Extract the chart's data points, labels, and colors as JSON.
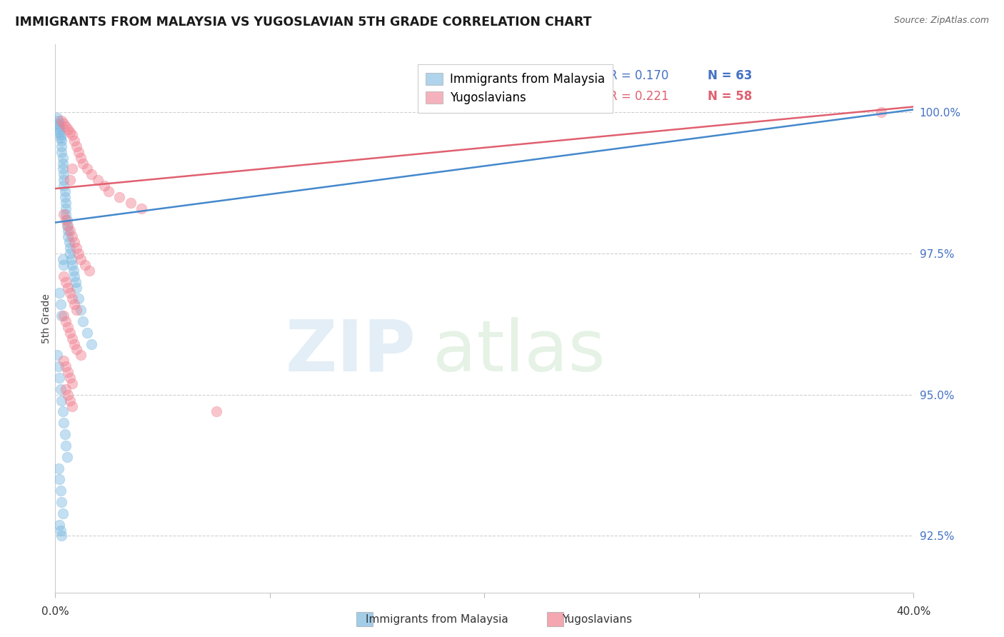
{
  "title": "IMMIGRANTS FROM MALAYSIA VS YUGOSLAVIAN 5TH GRADE CORRELATION CHART",
  "source": "Source: ZipAtlas.com",
  "ylabel": "5th Grade",
  "y_ticks": [
    92.5,
    95.0,
    97.5,
    100.0
  ],
  "y_tick_labels": [
    "92.5%",
    "95.0%",
    "97.5%",
    "100.0%"
  ],
  "x_range": [
    0.0,
    40.0
  ],
  "y_range": [
    91.5,
    101.2
  ],
  "malaysia_color": "#7ab8e0",
  "yugoslavian_color": "#f08090",
  "malaysia_line_color": "#4488cc",
  "yugoslavian_line_color": "#e06070",
  "background_color": "#ffffff",
  "grid_color": "#d0d0d0",
  "tick_label_color": "#4472c4",
  "title_color": "#1a1a1a",
  "source_color": "#666666",
  "ylabel_color": "#444444",
  "legend_r1": "R = 0.170",
  "legend_n1": "N = 63",
  "legend_r2": "R = 0.221",
  "legend_n2": "N = 58",
  "legend_label1": "Immigrants from Malaysia",
  "legend_label2": "Yugoslavians",
  "malaysia_line_x0": 0.0,
  "malaysia_line_y0": 98.05,
  "malaysia_line_x1": 40.0,
  "malaysia_line_y1": 100.05,
  "yugoslav_line_x0": 0.0,
  "yugoslav_line_y0": 98.65,
  "yugoslav_line_x1": 40.0,
  "yugoslav_line_y1": 100.1
}
